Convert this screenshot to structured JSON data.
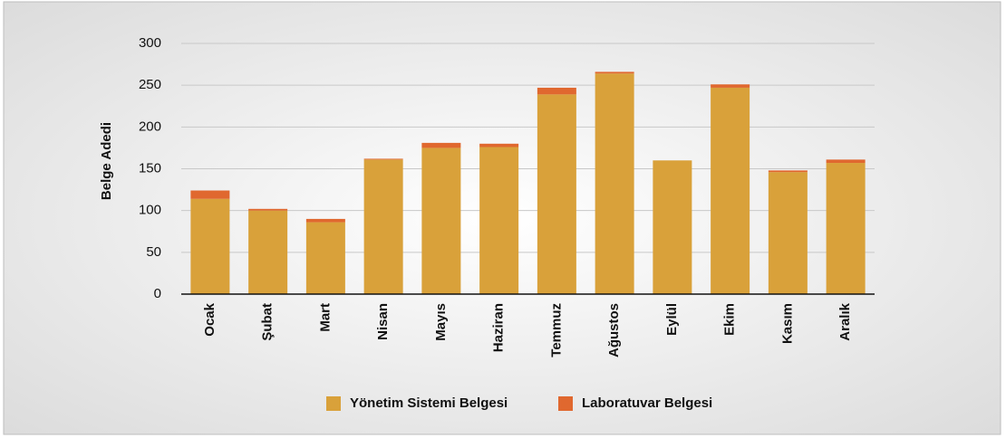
{
  "chart_data": {
    "type": "stacked_bar",
    "y_label": "Belge Adedi",
    "categories": [
      "Ocak",
      "Şubat",
      "Mart",
      "Nisan",
      "Mayıs",
      "Haziran",
      "Temmuz",
      "Ağustos",
      "Eylül",
      "Ekim",
      "Kasım",
      "Aralık"
    ],
    "series": [
      {
        "name": "Yönetim Sistemi Belgesi",
        "color": "#d9a13a",
        "values": [
          114,
          100,
          86,
          161,
          175,
          176,
          239,
          264,
          160,
          247,
          146,
          157
        ]
      },
      {
        "name": "Laboratuvar Belgesi",
        "color": "#e0682f",
        "values": [
          10,
          2,
          4,
          1,
          6,
          4,
          8,
          2,
          0,
          4,
          2,
          4
        ]
      }
    ],
    "ylim": [
      0,
      300
    ],
    "yticks": [
      0,
      50,
      100,
      150,
      200,
      250,
      300
    ],
    "grid": true,
    "legend": "bottom"
  }
}
